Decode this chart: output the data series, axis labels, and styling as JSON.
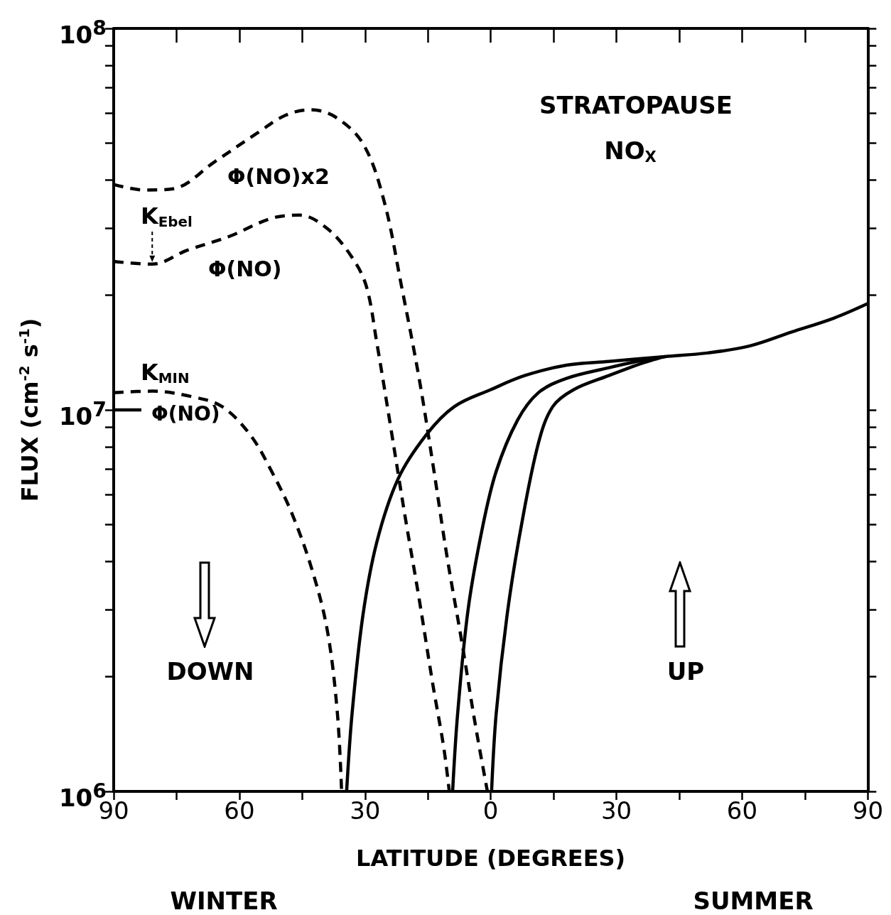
{
  "chart_data": {
    "type": "line",
    "title": "STRATOPAUSE\nNO$_{X}$",
    "xlabel": "LATITUDE (DEGREES)",
    "ylabel": "FLUX (cm$^{-2}$ s$^{-1}$)",
    "log": "y",
    "xlim": [
      -90,
      90
    ],
    "xticks": [
      {
        "value": -90,
        "label": "90"
      },
      {
        "value": -75,
        "label": null
      },
      {
        "value": -60,
        "label": "60"
      },
      {
        "value": -45,
        "label": null
      },
      {
        "value": -30,
        "label": "30"
      },
      {
        "value": -15,
        "label": null
      },
      {
        "value": 0,
        "label": "0"
      },
      {
        "value": 15,
        "label": null
      },
      {
        "value": 30,
        "label": "30"
      },
      {
        "value": 45,
        "label": null
      },
      {
        "value": 60,
        "label": "60"
      },
      {
        "value": 75,
        "label": null
      },
      {
        "value": 90,
        "label": "90"
      }
    ],
    "ylim": [
      1000000,
      100000000
    ],
    "yticks": [
      {
        "value": 1000000,
        "label": "10$^{6}$"
      },
      {
        "value": 2000000,
        "label": null
      },
      {
        "value": 3000000,
        "label": null
      },
      {
        "value": 4000000,
        "label": null
      },
      {
        "value": 5000000,
        "label": null
      },
      {
        "value": 6000000,
        "label": null
      },
      {
        "value": 7000000,
        "label": null
      },
      {
        "value": 8000000,
        "label": null
      },
      {
        "value": 9000000,
        "label": null
      },
      {
        "value": 10000000,
        "label": "10$^{7}$"
      },
      {
        "value": 20000000,
        "label": null
      },
      {
        "value": 30000000,
        "label": null
      },
      {
        "value": 40000000,
        "label": null
      },
      {
        "value": 50000000,
        "label": null
      },
      {
        "value": 60000000,
        "label": null
      },
      {
        "value": 70000000,
        "label": null
      },
      {
        "value": 80000000,
        "label": null
      },
      {
        "value": 90000000,
        "label": null
      },
      {
        "value": 100000000,
        "label": "10$^{8}$"
      }
    ],
    "grid": false,
    "marker": "none",
    "series": [
      {
        "color": "#000000",
        "line_style": "dashed",
        "x": [
          -90,
          -82.6,
          -75.8,
          -65.8,
          -55.7,
          -49,
          -43.1,
          -37.2,
          -30.5,
          -25.5,
          -21.3,
          -17.1,
          -13.8,
          -10.4,
          -7,
          -3.7,
          -0.8
        ],
        "values": [
          39000000,
          37700000,
          38000000,
          44800000,
          53200000,
          59200000,
          61200000,
          58700000,
          49900000,
          35400000,
          21100000,
          12100000,
          7200000,
          4100000,
          2500000,
          1500000,
          1000000
        ]
      },
      {
        "color": "#000000",
        "line_style": "dashed",
        "x": [
          -90,
          -80.8,
          -72.5,
          -62.4,
          -52.3,
          -45.6,
          -38.9,
          -33.1,
          -29.7,
          -27.2,
          -23.8,
          -20.5,
          -17.1,
          -13.8,
          -11.2,
          -9.9
        ],
        "values": [
          24500000,
          24100000,
          26200000,
          28500000,
          31800000,
          32400000,
          29800000,
          25100000,
          21100000,
          15000000,
          8900000,
          5300000,
          3200000,
          1900000,
          1300000,
          1000000
        ]
      },
      {
        "color": "#000000",
        "line_style": "dashed",
        "x": [
          -90,
          -80.8,
          -70.8,
          -64.1,
          -57.4,
          -52.3,
          -47.3,
          -42.3,
          -38.9,
          -36.6,
          -35.6
        ],
        "values": [
          11100000,
          11200000,
          10800000,
          10200000,
          8600000,
          6900000,
          5300000,
          3700000,
          2600000,
          1600000,
          1000000
        ]
      },
      {
        "color": "#000000",
        "line_style": "solid",
        "x": [
          -90,
          -83.4
        ],
        "values": [
          10000000,
          10000000
        ]
      },
      {
        "color": "#000000",
        "line_style": "solid",
        "x": [
          -34.4,
          -33.1,
          -30.5,
          -27.2,
          -22.1,
          -15.4,
          -8.7,
          0,
          8.1,
          18.1,
          28.2,
          41.6,
          51.7,
          61.7,
          71.8,
          81.9,
          90
        ],
        "values": [
          1000000,
          1600000,
          2900000,
          4500000,
          6600000,
          8600000,
          10200000,
          11300000,
          12300000,
          13100000,
          13400000,
          13800000,
          14100000,
          14700000,
          16000000,
          17400000,
          19000000
        ]
      },
      {
        "color": "#000000",
        "line_style": "solid",
        "x": [
          -9.1,
          -7.9,
          -5.4,
          -2,
          1.3,
          6.4,
          11.4,
          18.1,
          28.2,
          34.9,
          41.6
        ],
        "values": [
          1000000,
          1600000,
          3000000,
          4900000,
          6900000,
          9400000,
          11100000,
          12100000,
          12900000,
          13400000,
          13800000
        ]
      },
      {
        "color": "#000000",
        "line_style": "solid",
        "x": [
          0.2,
          1.3,
          3.9,
          7.2,
          11.4,
          14.8,
          19.8,
          28.2,
          36.6,
          41.6
        ],
        "values": [
          1000000,
          1600000,
          2900000,
          4900000,
          8200000,
          10200000,
          11300000,
          12300000,
          13300000,
          13800000
        ]
      }
    ],
    "annotations": [
      "Φ(NO)x2",
      {
        "text": "K$_{Ebel}$",
        "x": -80.8,
        "y": 24100000
      },
      "Φ(NO)",
      "K$_{MIN}$",
      "Φ(NO)",
      "DOWN",
      "UP",
      "WINTER",
      "SUMMER"
    ]
  }
}
